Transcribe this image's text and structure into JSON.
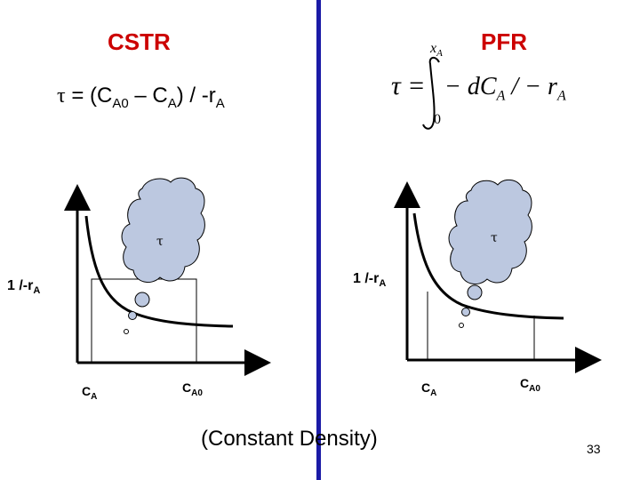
{
  "left": {
    "title": "CSTR",
    "equation": {
      "tau": "τ",
      "eq_text": " = (C",
      "a0_sub": "A0",
      "minus": " – C",
      "a_sub": "A",
      "close": ") / -r",
      "ra_sub": "A"
    },
    "graph": {
      "ylabel": "1 /-r",
      "ylabel_sub": "A",
      "x1_label": "C",
      "x1_sub": "A",
      "x2_label": "C",
      "x2_sub": "A0",
      "cloud_label": "τ"
    }
  },
  "right": {
    "title": "PFR",
    "equation": {
      "lhs": "τ =",
      "upper": "x",
      "upper_sub": "A",
      "lower": "0",
      "integrand": "− dC",
      "int_sub": "A",
      "tail": " / − r",
      "tail_sub": "A"
    },
    "graph": {
      "ylabel": "1 /-r",
      "ylabel_sub": "A",
      "x1_label": "C",
      "x1_sub": "A",
      "x2_label": "C",
      "x2_sub": "A0",
      "cloud_label": "τ"
    }
  },
  "footer": {
    "note": "(Constant Density)",
    "page_number": "33"
  },
  "colors": {
    "title": "#cc0000",
    "divider": "#1a1aa6",
    "cloud": "#bcc8e0"
  }
}
